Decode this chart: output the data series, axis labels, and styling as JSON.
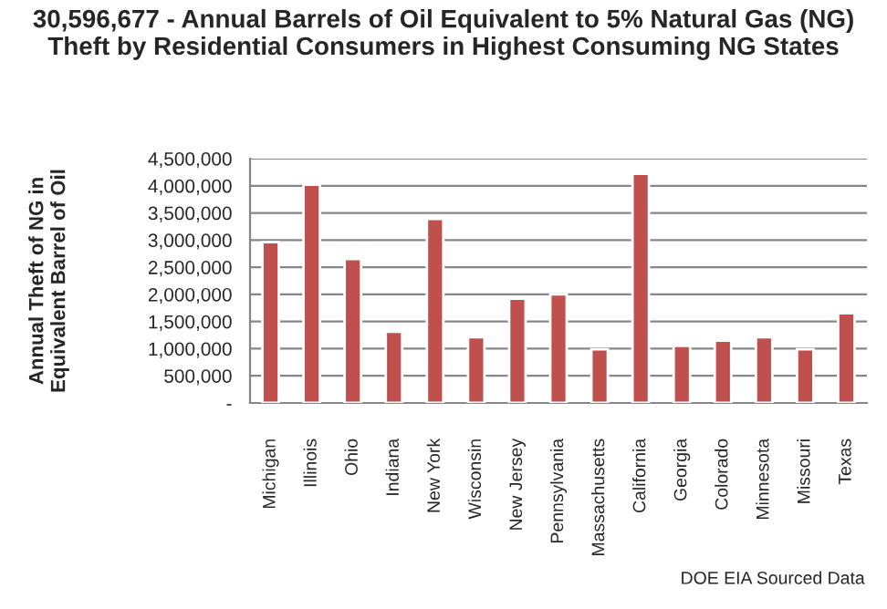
{
  "chart_data": {
    "type": "bar",
    "title": "30,596,677 - Annual Barrels of Oil Equivalent to 5% Natural Gas (NG) Theft by Residential Consumers in Highest Consuming NG States",
    "ylabel": "Annual Theft of NG in Equivalent Barrel of Oil",
    "categories": [
      "Michigan",
      "Illinois",
      "Ohio",
      "Indiana",
      "New York",
      "Wisconsin",
      "New Jersey",
      "Pennsylvania",
      "Massachusetts",
      "California",
      "Georgia",
      "Colorado",
      "Minnesota",
      "Missouri",
      "Texas"
    ],
    "values": [
      2960000,
      4020000,
      2650000,
      1310000,
      3390000,
      1210000,
      1920000,
      2000000,
      990000,
      4220000,
      1050000,
      1150000,
      1210000,
      990000,
      1650000
    ],
    "color": "#c0504d",
    "ylim": [
      0,
      4500000
    ],
    "yticks": [
      {
        "value": 0,
        "label": "-"
      },
      {
        "value": 500000,
        "label": "500,000"
      },
      {
        "value": 1000000,
        "label": "1,000,000"
      },
      {
        "value": 1500000,
        "label": "1,500,000"
      },
      {
        "value": 2000000,
        "label": "2,000,000"
      },
      {
        "value": 2500000,
        "label": "2,500,000"
      },
      {
        "value": 3000000,
        "label": "3,000,000"
      },
      {
        "value": 3500000,
        "label": "3,500,000"
      },
      {
        "value": 4000000,
        "label": "4,000,000"
      },
      {
        "value": 4500000,
        "label": "4,500,000"
      }
    ],
    "grid": "y",
    "annotations": [
      "DOE EIA Sourced Data"
    ]
  }
}
